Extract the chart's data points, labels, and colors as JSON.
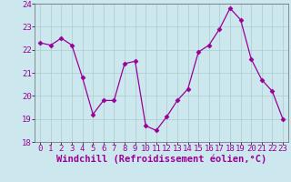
{
  "x": [
    0,
    1,
    2,
    3,
    4,
    5,
    6,
    7,
    8,
    9,
    10,
    11,
    12,
    13,
    14,
    15,
    16,
    17,
    18,
    19,
    20,
    21,
    22,
    23
  ],
  "y": [
    22.3,
    22.2,
    22.5,
    22.2,
    20.8,
    19.2,
    19.8,
    19.8,
    21.4,
    21.5,
    18.7,
    18.5,
    19.1,
    19.8,
    20.3,
    21.9,
    22.2,
    22.9,
    23.8,
    23.3,
    21.6,
    20.7,
    20.2,
    19.0
  ],
  "line_color": "#990099",
  "marker": "D",
  "marker_size": 2.5,
  "bg_color": "#cce8ee",
  "grid_color": "#aacccc",
  "xlabel": "Windchill (Refroidissement éolien,°C)",
  "tick_fontsize": 6.5,
  "xlabel_fontsize": 7.5,
  "ylim": [
    18,
    24
  ],
  "xlim": [
    -0.5,
    23.5
  ],
  "yticks": [
    18,
    19,
    20,
    21,
    22,
    23,
    24
  ],
  "xticks": [
    0,
    1,
    2,
    3,
    4,
    5,
    6,
    7,
    8,
    9,
    10,
    11,
    12,
    13,
    14,
    15,
    16,
    17,
    18,
    19,
    20,
    21,
    22,
    23
  ],
  "text_color": "#990099"
}
